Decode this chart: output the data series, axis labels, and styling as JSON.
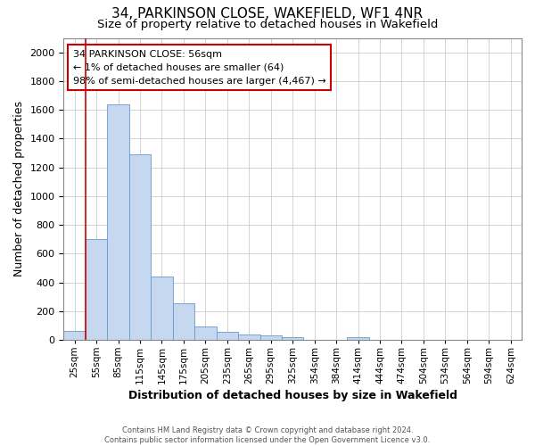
{
  "title": "34, PARKINSON CLOSE, WAKEFIELD, WF1 4NR",
  "subtitle": "Size of property relative to detached houses in Wakefield",
  "xlabel": "Distribution of detached houses by size in Wakefield",
  "ylabel": "Number of detached properties",
  "bar_values": [
    65,
    700,
    1640,
    1290,
    440,
    255,
    90,
    55,
    40,
    30,
    20,
    0,
    0,
    20,
    0,
    0,
    0,
    0,
    0,
    0,
    0
  ],
  "bar_labels": [
    "25sqm",
    "55sqm",
    "85sqm",
    "115sqm",
    "145sqm",
    "175sqm",
    "205sqm",
    "235sqm",
    "265sqm",
    "295sqm",
    "325sqm",
    "354sqm",
    "384sqm",
    "414sqm",
    "444sqm",
    "474sqm",
    "504sqm",
    "534sqm",
    "564sqm",
    "594sqm",
    "624sqm"
  ],
  "bar_color": "#c5d8f0",
  "bar_edge_color": "#6699cc",
  "vline_x_index": 1,
  "vline_color": "#cc0000",
  "ylim": [
    0,
    2100
  ],
  "ytick_interval": 200,
  "annotation_text": "34 PARKINSON CLOSE: 56sqm\n← 1% of detached houses are smaller (64)\n98% of semi-detached houses are larger (4,467) →",
  "annotation_box_color": "#cc0000",
  "annotation_bg": "#ffffff",
  "footer_line1": "Contains HM Land Registry data © Crown copyright and database right 2024.",
  "footer_line2": "Contains public sector information licensed under the Open Government Licence v3.0.",
  "title_fontsize": 11,
  "subtitle_fontsize": 9.5,
  "tick_fontsize": 7.5,
  "ylabel_fontsize": 9,
  "xlabel_fontsize": 9,
  "annotation_fontsize": 8,
  "footer_fontsize": 6
}
